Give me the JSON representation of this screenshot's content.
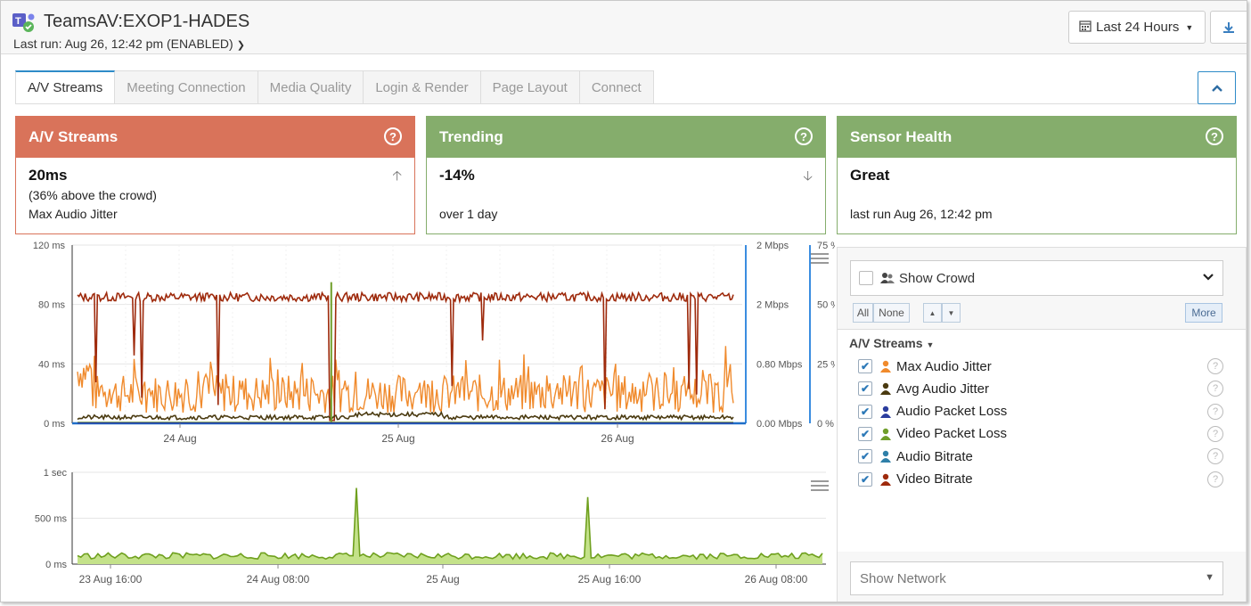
{
  "header": {
    "title": "TeamsAV:EXOP1-HADES",
    "last_run": "Last run: Aug 26, 12:42 pm (ENABLED)",
    "range_label": "Last 24 Hours"
  },
  "tabs": [
    {
      "label": "A/V Streams",
      "active": true
    },
    {
      "label": "Meeting Connection",
      "active": false
    },
    {
      "label": "Media Quality",
      "active": false
    },
    {
      "label": "Login & Render",
      "active": false
    },
    {
      "label": "Page Layout",
      "active": false
    },
    {
      "label": "Connect",
      "active": false
    }
  ],
  "cards": {
    "streams": {
      "title": "A/V Streams",
      "value": "20ms",
      "line2": "(36% above the crowd)",
      "line3": "Max Audio Jitter",
      "color": "#d9735a",
      "border": "#d9735a"
    },
    "trending": {
      "title": "Trending",
      "value": "-14%",
      "line2": "",
      "line3": "over 1 day",
      "color": "#85ad6c",
      "border": "#85ad6c"
    },
    "health": {
      "title": "Sensor Health",
      "value": "Great",
      "line2": "",
      "line3": "last run Aug 26, 12:42 pm",
      "color": "#85ad6c",
      "border": "#85ad6c"
    }
  },
  "panel": {
    "show_crowd": "Show Crowd",
    "btn_all": "All",
    "btn_none": "None",
    "btn_more": "More",
    "group_title": "A/V Streams",
    "items": [
      {
        "label": "Max Audio Jitter",
        "color": "#f08a2c"
      },
      {
        "label": "Avg Audio Jitter",
        "color": "#4a3a10"
      },
      {
        "label": "Audio Packet Loss",
        "color": "#2b3d9e"
      },
      {
        "label": "Video Packet Loss",
        "color": "#6f9e2a"
      },
      {
        "label": "Audio Bitrate",
        "color": "#2e7fa8"
      },
      {
        "label": "Video Bitrate",
        "color": "#9e2a0c"
      }
    ],
    "show_network": "Show Network"
  },
  "chart_data": [
    {
      "type": "line",
      "y_left": {
        "ticks": [
          "120 ms",
          "80 ms",
          "40 ms",
          "0 ms"
        ],
        "range": [
          0,
          120
        ]
      },
      "y_right1": {
        "ticks": [
          "2 Mbps",
          "2 Mbps",
          "0.80 Mbps",
          "0.00 Mbps"
        ]
      },
      "y_right2": {
        "ticks": [
          "75 %",
          "50 %",
          "25 %",
          "0 %"
        ]
      },
      "x_ticks": [
        "24 Aug",
        "25 Aug",
        "26 Aug"
      ],
      "series": [
        {
          "name": "Video Bitrate",
          "color": "#9e2a0c",
          "level": 85
        },
        {
          "name": "Max Audio Jitter",
          "color": "#f08a2c",
          "level": 20
        },
        {
          "name": "Avg Audio Jitter",
          "color": "#4a3a10",
          "level": 4
        },
        {
          "name": "Video Packet Loss",
          "color": "#6f9e2a",
          "level": 0.5
        },
        {
          "name": "Audio Packet Loss",
          "color": "#2b3d9e",
          "level": 0.3
        }
      ]
    },
    {
      "type": "area",
      "y_ticks": [
        "1 sec",
        "500 ms",
        "0 ms"
      ],
      "y_range_ms": [
        0,
        1000
      ],
      "x_ticks": [
        "23 Aug 16:00",
        "24 Aug 08:00",
        "25 Aug",
        "25 Aug 16:00",
        "26 Aug 08:00"
      ],
      "series": [
        {
          "color": "#8fc442",
          "level_ms": 90,
          "peaks_ms": [
            830,
            730
          ]
        }
      ]
    }
  ]
}
